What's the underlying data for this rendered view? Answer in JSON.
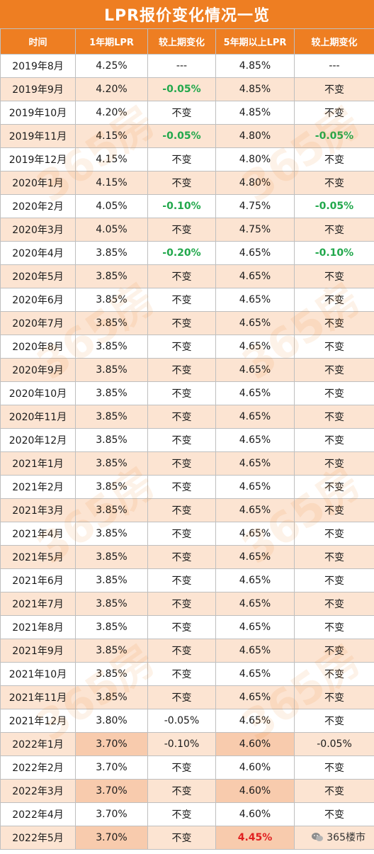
{
  "title": "LPR报价变化情况一览",
  "headers": [
    "时间",
    "1年期LPR",
    "较上期变化",
    "5年期以上LPR",
    "较上期变化"
  ],
  "rows": [
    {
      "date": "2019年8月",
      "lpr1": "4.25%",
      "chg1": "---",
      "lpr5": "4.85%",
      "chg5": "---",
      "chg1_style": "",
      "chg5_style": "",
      "lpr5_style": "",
      "bg": "odd"
    },
    {
      "date": "2019年9月",
      "lpr1": "4.20%",
      "chg1": "-0.05%",
      "lpr5": "4.85%",
      "chg5": "不变",
      "chg1_style": "green",
      "chg5_style": "",
      "lpr5_style": "",
      "bg": "even"
    },
    {
      "date": "2019年10月",
      "lpr1": "4.20%",
      "chg1": "不变",
      "lpr5": "4.85%",
      "chg5": "不变",
      "chg1_style": "",
      "chg5_style": "",
      "lpr5_style": "",
      "bg": "odd"
    },
    {
      "date": "2019年11月",
      "lpr1": "4.15%",
      "chg1": "-0.05%",
      "lpr5": "4.80%",
      "chg5": "-0.05%",
      "chg1_style": "green",
      "chg5_style": "green",
      "lpr5_style": "",
      "bg": "even"
    },
    {
      "date": "2019年12月",
      "lpr1": "4.15%",
      "chg1": "不变",
      "lpr5": "4.80%",
      "chg5": "不变",
      "chg1_style": "",
      "chg5_style": "",
      "lpr5_style": "",
      "bg": "odd"
    },
    {
      "date": "2020年1月",
      "lpr1": "4.15%",
      "chg1": "不变",
      "lpr5": "4.80%",
      "chg5": "不变",
      "chg1_style": "",
      "chg5_style": "",
      "lpr5_style": "",
      "bg": "even"
    },
    {
      "date": "2020年2月",
      "lpr1": "4.05%",
      "chg1": "-0.10%",
      "lpr5": "4.75%",
      "chg5": "-0.05%",
      "chg1_style": "green",
      "chg5_style": "green",
      "lpr5_style": "",
      "bg": "odd"
    },
    {
      "date": "2020年3月",
      "lpr1": "4.05%",
      "chg1": "不变",
      "lpr5": "4.75%",
      "chg5": "不变",
      "chg1_style": "",
      "chg5_style": "",
      "lpr5_style": "",
      "bg": "even"
    },
    {
      "date": "2020年4月",
      "lpr1": "3.85%",
      "chg1": "-0.20%",
      "lpr5": "4.65%",
      "chg5": "-0.10%",
      "chg1_style": "green",
      "chg5_style": "green",
      "lpr5_style": "",
      "bg": "odd"
    },
    {
      "date": "2020年5月",
      "lpr1": "3.85%",
      "chg1": "不变",
      "lpr5": "4.65%",
      "chg5": "不变",
      "chg1_style": "",
      "chg5_style": "",
      "lpr5_style": "",
      "bg": "even"
    },
    {
      "date": "2020年6月",
      "lpr1": "3.85%",
      "chg1": "不变",
      "lpr5": "4.65%",
      "chg5": "不变",
      "chg1_style": "",
      "chg5_style": "",
      "lpr5_style": "",
      "bg": "odd"
    },
    {
      "date": "2020年7月",
      "lpr1": "3.85%",
      "chg1": "不变",
      "lpr5": "4.65%",
      "chg5": "不变",
      "chg1_style": "",
      "chg5_style": "",
      "lpr5_style": "",
      "bg": "even"
    },
    {
      "date": "2020年8月",
      "lpr1": "3.85%",
      "chg1": "不变",
      "lpr5": "4.65%",
      "chg5": "不变",
      "chg1_style": "",
      "chg5_style": "",
      "lpr5_style": "",
      "bg": "odd"
    },
    {
      "date": "2020年9月",
      "lpr1": "3.85%",
      "chg1": "不变",
      "lpr5": "4.65%",
      "chg5": "不变",
      "chg1_style": "",
      "chg5_style": "",
      "lpr5_style": "",
      "bg": "even"
    },
    {
      "date": "2020年10月",
      "lpr1": "3.85%",
      "chg1": "不变",
      "lpr5": "4.65%",
      "chg5": "不变",
      "chg1_style": "",
      "chg5_style": "",
      "lpr5_style": "",
      "bg": "odd"
    },
    {
      "date": "2020年11月",
      "lpr1": "3.85%",
      "chg1": "不变",
      "lpr5": "4.65%",
      "chg5": "不变",
      "chg1_style": "",
      "chg5_style": "",
      "lpr5_style": "",
      "bg": "even"
    },
    {
      "date": "2020年12月",
      "lpr1": "3.85%",
      "chg1": "不变",
      "lpr5": "4.65%",
      "chg5": "不变",
      "chg1_style": "",
      "chg5_style": "",
      "lpr5_style": "",
      "bg": "odd"
    },
    {
      "date": "2021年1月",
      "lpr1": "3.85%",
      "chg1": "不变",
      "lpr5": "4.65%",
      "chg5": "不变",
      "chg1_style": "",
      "chg5_style": "",
      "lpr5_style": "",
      "bg": "even"
    },
    {
      "date": "2021年2月",
      "lpr1": "3.85%",
      "chg1": "不变",
      "lpr5": "4.65%",
      "chg5": "不变",
      "chg1_style": "",
      "chg5_style": "",
      "lpr5_style": "",
      "bg": "odd"
    },
    {
      "date": "2021年3月",
      "lpr1": "3.85%",
      "chg1": "不变",
      "lpr5": "4.65%",
      "chg5": "不变",
      "chg1_style": "",
      "chg5_style": "",
      "lpr5_style": "",
      "bg": "even"
    },
    {
      "date": "2021年4月",
      "lpr1": "3.85%",
      "chg1": "不变",
      "lpr5": "4.65%",
      "chg5": "不变",
      "chg1_style": "",
      "chg5_style": "",
      "lpr5_style": "",
      "bg": "odd"
    },
    {
      "date": "2021年5月",
      "lpr1": "3.85%",
      "chg1": "不变",
      "lpr5": "4.65%",
      "chg5": "不变",
      "chg1_style": "",
      "chg5_style": "",
      "lpr5_style": "",
      "bg": "even"
    },
    {
      "date": "2021年6月",
      "lpr1": "3.85%",
      "chg1": "不变",
      "lpr5": "4.65%",
      "chg5": "不变",
      "chg1_style": "",
      "chg5_style": "",
      "lpr5_style": "",
      "bg": "odd"
    },
    {
      "date": "2021年7月",
      "lpr1": "3.85%",
      "chg1": "不变",
      "lpr5": "4.65%",
      "chg5": "不变",
      "chg1_style": "",
      "chg5_style": "",
      "lpr5_style": "",
      "bg": "even"
    },
    {
      "date": "2021年8月",
      "lpr1": "3.85%",
      "chg1": "不变",
      "lpr5": "4.65%",
      "chg5": "不变",
      "chg1_style": "",
      "chg5_style": "",
      "lpr5_style": "",
      "bg": "odd"
    },
    {
      "date": "2021年9月",
      "lpr1": "3.85%",
      "chg1": "不变",
      "lpr5": "4.65%",
      "chg5": "不变",
      "chg1_style": "",
      "chg5_style": "",
      "lpr5_style": "",
      "bg": "even"
    },
    {
      "date": "2021年10月",
      "lpr1": "3.85%",
      "chg1": "不变",
      "lpr5": "4.65%",
      "chg5": "不变",
      "chg1_style": "",
      "chg5_style": "",
      "lpr5_style": "",
      "bg": "odd"
    },
    {
      "date": "2021年11月",
      "lpr1": "3.85%",
      "chg1": "不变",
      "lpr5": "4.65%",
      "chg5": "不变",
      "chg1_style": "",
      "chg5_style": "",
      "lpr5_style": "",
      "bg": "even"
    },
    {
      "date": "2021年12月",
      "lpr1": "3.80%",
      "chg1": "-0.05%",
      "lpr5": "4.65%",
      "chg5": "不变",
      "chg1_style": "",
      "chg5_style": "",
      "lpr5_style": "",
      "bg": "odd"
    },
    {
      "date": "2022年1月",
      "lpr1": "3.70%",
      "chg1": "-0.10%",
      "lpr5": "4.60%",
      "chg5": "-0.05%",
      "chg1_style": "",
      "chg5_style": "",
      "lpr5_style": "",
      "bg": "dark"
    },
    {
      "date": "2022年2月",
      "lpr1": "3.70%",
      "chg1": "不变",
      "lpr5": "4.60%",
      "chg5": "不变",
      "chg1_style": "",
      "chg5_style": "",
      "lpr5_style": "",
      "bg": "odd"
    },
    {
      "date": "2022年3月",
      "lpr1": "3.70%",
      "chg1": "不变",
      "lpr5": "4.60%",
      "chg5": "不变",
      "chg1_style": "",
      "chg5_style": "",
      "lpr5_style": "",
      "bg": "dark"
    },
    {
      "date": "2022年4月",
      "lpr1": "3.70%",
      "chg1": "不变",
      "lpr5": "4.60%",
      "chg5": "不变",
      "chg1_style": "",
      "chg5_style": "",
      "lpr5_style": "",
      "bg": "odd"
    },
    {
      "date": "2022年5月",
      "lpr1": "3.70%",
      "chg1": "不变",
      "lpr5": "4.45%",
      "chg5": "",
      "chg1_style": "",
      "chg5_style": "",
      "lpr5_style": "red",
      "bg": "dark"
    }
  ],
  "watermark_text": "365房",
  "logo_text": "365楼市",
  "colors": {
    "accent": "#ee7e22",
    "row_tint": "#fce4d2",
    "row_tint_dark": "#f8cbad",
    "decrease_green": "#22a84c",
    "highlight_red": "#e02020"
  }
}
